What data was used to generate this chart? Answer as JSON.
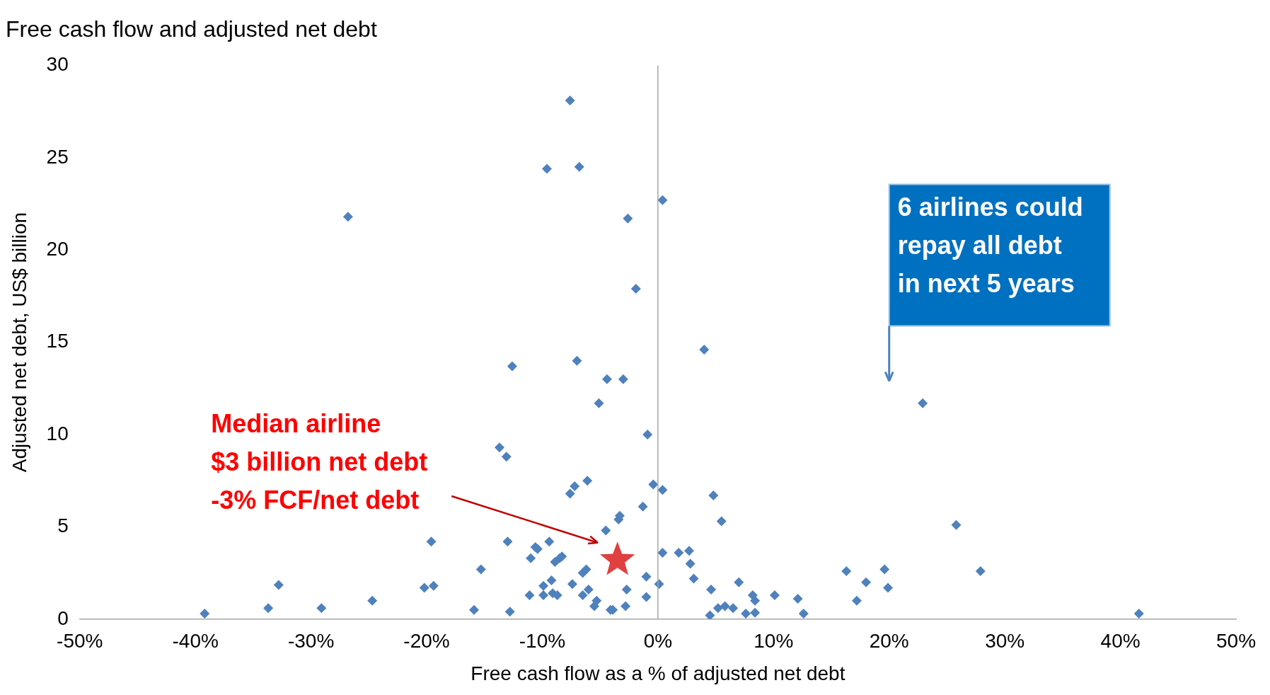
{
  "chart_data": {
    "type": "scatter",
    "title": "Free cash flow and adjusted net debt",
    "xlabel": "Free cash flow as a % of adjusted net debt",
    "ylabel": "Adjusted net debt, US$ billion",
    "xlim": [
      -50,
      50
    ],
    "xticks": [
      {
        "value": -50,
        "label": "-50%"
      },
      {
        "value": -40,
        "label": "-40%"
      },
      {
        "value": -30,
        "label": "-30%"
      },
      {
        "value": -20,
        "label": "-20%"
      },
      {
        "value": -10,
        "label": "-10%"
      },
      {
        "value": 0,
        "label": "0%"
      },
      {
        "value": 10,
        "label": "10%"
      },
      {
        "value": 20,
        "label": "20%"
      },
      {
        "value": 30,
        "label": "30%"
      },
      {
        "value": 40,
        "label": "40%"
      },
      {
        "value": 50,
        "label": "50%"
      }
    ],
    "ylim": [
      0,
      30
    ],
    "yticks": [
      0,
      5,
      10,
      15,
      20,
      25,
      30
    ],
    "grid": false,
    "legend": false,
    "ref_lines": [
      {
        "axis": "x",
        "value": 0,
        "color": "#a6a6a6"
      }
    ],
    "series": [
      {
        "color": "#4f81bd",
        "marker": "diamond",
        "x": [
          -39.2,
          -33.7,
          -32.8,
          -29.1,
          -26.8,
          -24.7,
          -20.2,
          -19.4,
          -19.6,
          -15.9,
          -15.3,
          -13.7,
          -13.1,
          -13.0,
          -12.8,
          -12.6,
          -11.1,
          -11.0,
          -10.6,
          -10.4,
          -9.9,
          -9.9,
          -9.6,
          -9.4,
          -9.2,
          -9.1,
          -8.9,
          -8.7,
          -8.5,
          -8.3,
          -7.6,
          -7.6,
          -7.4,
          -7.2,
          -7.0,
          -6.8,
          -6.5,
          -6.5,
          -6.2,
          -6.1,
          -6.0,
          -5.5,
          -5.3,
          -5.1,
          -4.5,
          -4.4,
          -4.1,
          -3.9,
          -3.4,
          -3.3,
          -3.0,
          -2.8,
          -2.7,
          -2.6,
          -1.9,
          -1.3,
          -1.0,
          -1.0,
          -0.9,
          -0.4,
          0.1,
          0.4,
          0.4,
          0.4,
          1.8,
          2.7,
          2.8,
          3.1,
          4.0,
          4.6,
          4.5,
          4.8,
          5.2,
          5.5,
          5.8,
          6.5,
          7.0,
          7.6,
          8.2,
          8.4,
          8.4,
          10.1,
          12.1,
          12.6,
          16.3,
          17.2,
          18.0,
          19.6,
          19.9,
          22.9,
          25.8,
          27.9,
          41.6
        ],
        "values": [
          0.3,
          0.6,
          1.85,
          0.6,
          21.8,
          1.0,
          1.7,
          1.8,
          4.2,
          0.5,
          2.7,
          9.3,
          8.8,
          4.2,
          0.4,
          13.7,
          1.3,
          3.3,
          3.9,
          3.8,
          1.8,
          1.3,
          24.4,
          4.2,
          2.1,
          1.4,
          3.1,
          1.3,
          3.3,
          3.4,
          28.1,
          6.8,
          1.9,
          7.2,
          14.0,
          24.5,
          2.5,
          1.3,
          2.7,
          7.5,
          1.6,
          0.7,
          1.0,
          11.7,
          4.8,
          13.0,
          0.5,
          0.5,
          5.4,
          5.6,
          13.0,
          0.7,
          1.6,
          21.7,
          17.9,
          6.1,
          2.3,
          1.2,
          10.0,
          7.3,
          1.9,
          22.7,
          7.0,
          3.6,
          3.6,
          3.7,
          3.0,
          2.2,
          14.6,
          1.6,
          0.2,
          6.7,
          0.6,
          5.3,
          0.7,
          0.6,
          2.0,
          0.3,
          1.3,
          1.0,
          0.35,
          1.3,
          1.1,
          0.3,
          2.6,
          1.0,
          2.0,
          2.7,
          1.7,
          11.7,
          5.1,
          2.6,
          0.3
        ]
      },
      {
        "color": "#e04040",
        "marker": "star",
        "x": [
          -3.5
        ],
        "values": [
          3.2
        ]
      }
    ],
    "annotations": [
      "Median airline\n$3 billion net debt\n-3% FCF/net debt",
      "6 airlines could\nrepay all debt\nin next 5 years"
    ]
  }
}
